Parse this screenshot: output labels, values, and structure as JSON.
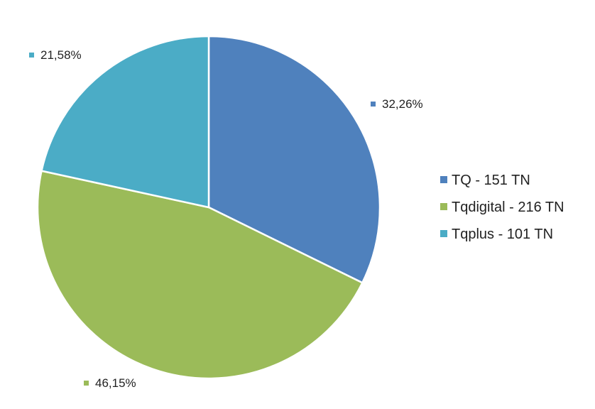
{
  "chart_data": {
    "type": "pie",
    "slices": [
      {
        "name": "TQ - 151 TN",
        "value": 151,
        "percent_label": "32,26%",
        "color": "#4F81BD"
      },
      {
        "name": "Tqdigital - 216 TN",
        "value": 216,
        "percent_label": "46,15%",
        "color": "#9BBB59"
      },
      {
        "name": "Tqplus - 101 TN",
        "value": 101,
        "percent_label": "21,58%",
        "color": "#4BACC6"
      }
    ],
    "start_angle_deg": 0,
    "direction": "clockwise",
    "legend_position": "right"
  }
}
